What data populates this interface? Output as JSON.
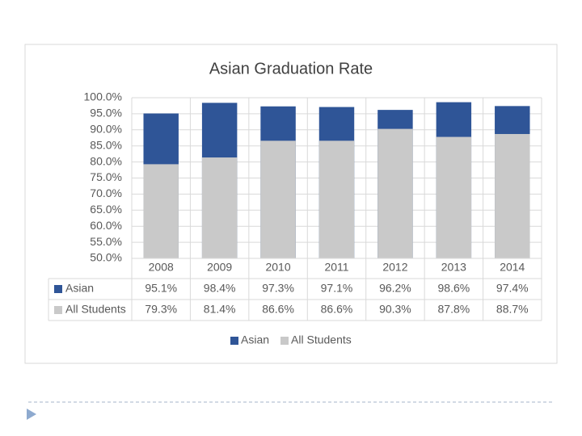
{
  "chart_data": {
    "type": "bar",
    "title": "Asian Graduation Rate",
    "categories": [
      "2008",
      "2009",
      "2010",
      "2011",
      "2012",
      "2013",
      "2014"
    ],
    "series": [
      {
        "name": "Asian",
        "color": "#2f5597",
        "values": [
          95.1,
          98.4,
          97.3,
          97.1,
          96.2,
          98.6,
          97.4
        ],
        "value_labels": [
          "95.1%",
          "98.4%",
          "97.3%",
          "97.1%",
          "96.2%",
          "98.6%",
          "97.4%"
        ]
      },
      {
        "name": "All Students",
        "color": "#c9c9c9",
        "values": [
          79.3,
          81.4,
          86.6,
          86.6,
          90.3,
          87.8,
          88.7
        ],
        "value_labels": [
          "79.3%",
          "81.4%",
          "86.6%",
          "86.6%",
          "90.3%",
          "87.8%",
          "88.7%"
        ]
      }
    ],
    "ylim": [
      50,
      100
    ],
    "yticks": [
      {
        "value": 50,
        "label": "50.0%"
      },
      {
        "value": 55,
        "label": "55.0%"
      },
      {
        "value": 60,
        "label": "60.0%"
      },
      {
        "value": 65,
        "label": "65.0%"
      },
      {
        "value": 70,
        "label": "70.0%"
      },
      {
        "value": 75,
        "label": "75.0%"
      },
      {
        "value": 80,
        "label": "80.0%"
      },
      {
        "value": 85,
        "label": "85.0%"
      },
      {
        "value": 90,
        "label": "90.0%"
      },
      {
        "value": 95,
        "label": "95.0%"
      },
      {
        "value": 100,
        "label": "100.0%"
      }
    ],
    "grid": true,
    "overlap": true,
    "legend": "bottom"
  }
}
